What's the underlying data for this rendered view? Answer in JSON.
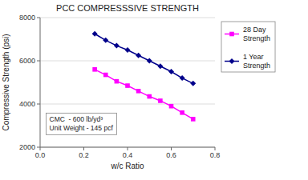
{
  "chart_data": {
    "type": "line",
    "title": "PCC COMPRESSSIVE STRENGTH",
    "x_label": "w/c Ratio",
    "y_label": "Compressive Strength (psi)",
    "x": [
      0.25,
      0.3,
      0.35,
      0.4,
      0.45,
      0.5,
      0.55,
      0.6,
      0.65,
      0.7
    ],
    "series": [
      {
        "name": "28 Day\nStrength",
        "color": "#FF00FF",
        "marker": "square",
        "values": [
          5600,
          5350,
          5050,
          4850,
          4600,
          4350,
          4150,
          3900,
          3600,
          3300
        ]
      },
      {
        "name": "1 Year\nStrength",
        "color": "#00008B",
        "marker": "diamond",
        "values": [
          7250,
          6950,
          6700,
          6500,
          6250,
          6000,
          5750,
          5500,
          5200,
          4950
        ]
      }
    ],
    "xlim": [
      0,
      0.8
    ],
    "ylim": [
      2000,
      8000
    ],
    "xticks": [
      {
        "value": 0,
        "label": "0.0"
      },
      0.2,
      0.4,
      0.6,
      0.8
    ],
    "yticks": [
      2000,
      4000,
      6000,
      8000
    ],
    "grid": "y",
    "legend": "right",
    "annotation": "CMC  - 600 lb/yd³\nUnit Weight - 145 pcf"
  }
}
